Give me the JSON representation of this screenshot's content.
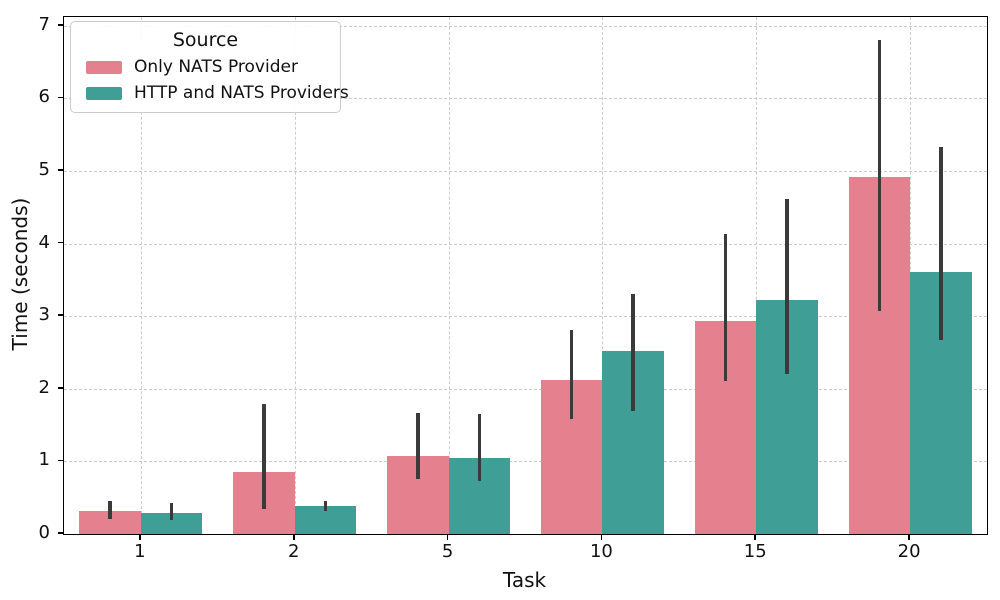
{
  "chart_data": {
    "type": "bar",
    "title": "",
    "xlabel": "Task",
    "ylabel": "Time (seconds)",
    "categories": [
      "1",
      "2",
      "5",
      "10",
      "15",
      "20"
    ],
    "series": [
      {
        "name": "Only NATS Provider",
        "color": "#e5818f",
        "values": [
          0.32,
          0.86,
          1.07,
          2.12,
          2.93,
          4.92
        ],
        "err_low": [
          0.21,
          0.35,
          0.76,
          1.58,
          2.11,
          3.07
        ],
        "err_high": [
          0.45,
          1.79,
          1.66,
          2.81,
          4.13,
          6.8
        ]
      },
      {
        "name": "HTTP and NATS Providers",
        "color": "#3f9e96",
        "values": [
          0.29,
          0.39,
          1.04,
          2.52,
          3.22,
          3.61
        ],
        "err_low": [
          0.19,
          0.32,
          0.73,
          1.7,
          2.21,
          2.67
        ],
        "err_high": [
          0.43,
          0.46,
          1.65,
          3.31,
          4.62,
          5.33
        ]
      }
    ],
    "ylim": [
      0,
      7.12
    ],
    "yticks": [
      0,
      1,
      2,
      3,
      4,
      5,
      6,
      7
    ],
    "grid": true,
    "legend": {
      "title": "Source",
      "position": "upper-left"
    }
  },
  "style": {
    "grid_color": "#cccccc",
    "error_bar_color": "#3a3a3a",
    "axis_color": "#000000",
    "background": "#ffffff"
  }
}
